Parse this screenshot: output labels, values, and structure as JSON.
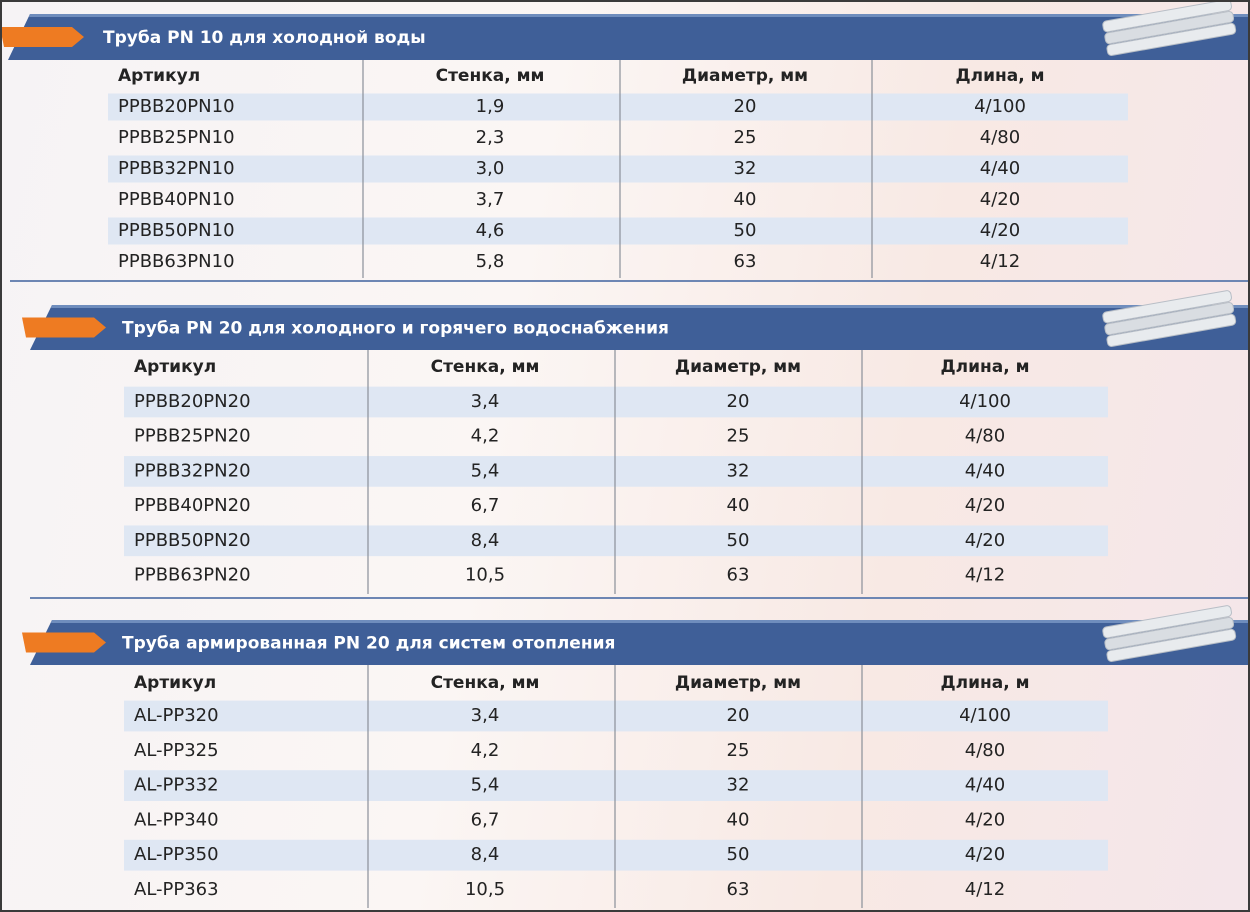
{
  "sections": [
    {
      "title": "Труба PN 10 для холодной воды",
      "columns": [
        "Артикул",
        "Стенка, мм",
        "Диаметр, мм",
        "Длина, м"
      ],
      "rows": [
        [
          "PPBB20PN10",
          "1,9",
          "20",
          "4/100"
        ],
        [
          "PPBB25PN10",
          "2,3",
          "25",
          "4/80"
        ],
        [
          "PPBB32PN10",
          "3,0",
          "32",
          "4/40"
        ],
        [
          "PPBB40PN10",
          "3,7",
          "40",
          "4/20"
        ],
        [
          "PPBB50PN10",
          "4,6",
          "50",
          "4/20"
        ],
        [
          "PPBB63PN10",
          "5,8",
          "63",
          "4/12"
        ]
      ]
    },
    {
      "title": "Труба PN 20 для холодного и горячего водоснабжения",
      "columns": [
        "Артикул",
        "Стенка, мм",
        "Диаметр, мм",
        "Длина, м"
      ],
      "rows": [
        [
          "PPBB20PN20",
          "3,4",
          "20",
          "4/100"
        ],
        [
          "PPBB25PN20",
          "4,2",
          "25",
          "4/80"
        ],
        [
          "PPBB32PN20",
          "5,4",
          "32",
          "4/40"
        ],
        [
          "PPBB40PN20",
          "6,7",
          "40",
          "4/20"
        ],
        [
          "PPBB50PN20",
          "8,4",
          "50",
          "4/20"
        ],
        [
          "PPBB63PN20",
          "10,5",
          "63",
          "4/12"
        ]
      ]
    },
    {
      "title": "Труба армированная PN 20 для систем отопления",
      "columns": [
        "Артикул",
        "Стенка, мм",
        "Диаметр, мм",
        "Длина, м"
      ],
      "rows": [
        [
          "AL-PP320",
          "3,4",
          "20",
          "4/100"
        ],
        [
          "AL-PP325",
          "4,2",
          "25",
          "4/80"
        ],
        [
          "AL-PP332",
          "5,4",
          "32",
          "4/40"
        ],
        [
          "AL-PP340",
          "6,7",
          "40",
          "4/20"
        ],
        [
          "AL-PP350",
          "8,4",
          "50",
          "4/20"
        ],
        [
          "AL-PP363",
          "10,5",
          "63",
          "4/12"
        ]
      ]
    }
  ]
}
